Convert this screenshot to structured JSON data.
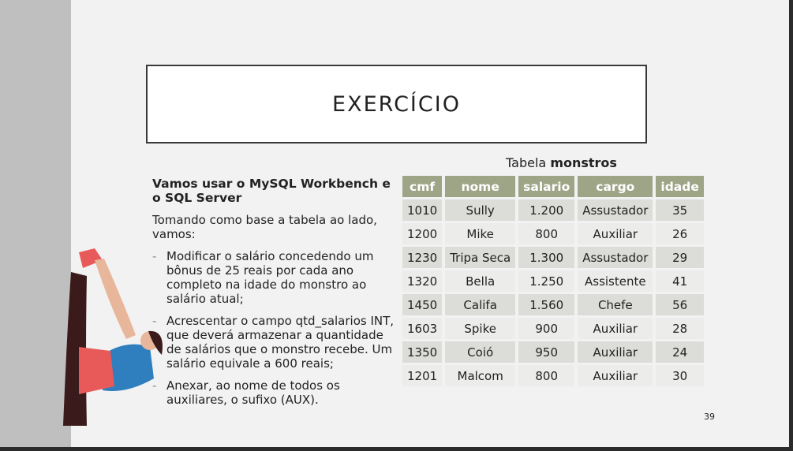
{
  "title": "EXERCÍCIO",
  "heading": "Vamos usar o MySQL Workbench e o SQL Server",
  "intro": "Tomando como base a tabela ao lado, vamos:",
  "bullets": [
    "Modificar o salário concedendo um bônus de 25 reais por cada ano completo na idade do monstro ao salário atual;",
    "Acrescentar o campo qtd_salarios INT, que deverá armazenar a quantidade de salários que o monstro recebe. Um salário equivale a 600 reais;",
    "Anexar, ao nome de todos os auxiliares, o sufixo (AUX)."
  ],
  "table": {
    "caption_prefix": "Tabela",
    "caption_name": "monstros",
    "headers": [
      "cmf",
      "nome",
      "salario",
      "cargo",
      "idade"
    ],
    "rows": [
      [
        "1010",
        "Sully",
        "1.200",
        "Assustador",
        "35"
      ],
      [
        "1200",
        "Mike",
        "800",
        "Auxiliar",
        "26"
      ],
      [
        "1230",
        "Tripa Seca",
        "1.300",
        "Assustador",
        "29"
      ],
      [
        "1320",
        "Bella",
        "1.250",
        "Assistente",
        "41"
      ],
      [
        "1450",
        "Califa",
        "1.560",
        "Chefe",
        "56"
      ],
      [
        "1603",
        "Spike",
        "900",
        "Auxiliar",
        "28"
      ],
      [
        "1350",
        "Coió",
        "950",
        "Auxiliar",
        "24"
      ],
      [
        "1201",
        "Malcom",
        "800",
        "Auxiliar",
        "30"
      ]
    ]
  },
  "page_number": "39"
}
